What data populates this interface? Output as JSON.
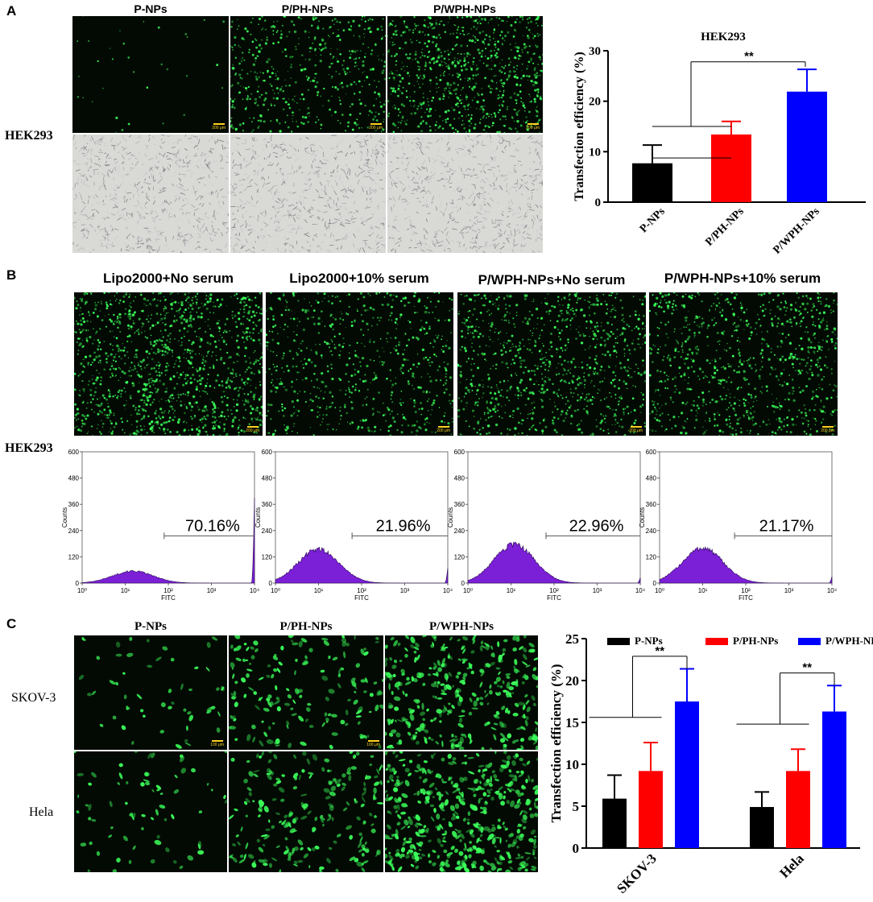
{
  "panels": {
    "A": {
      "letter": "A",
      "columns": [
        "P-NPs",
        "P/PH-NPs",
        "P/WPH-NPs"
      ],
      "row_label": "HEK293",
      "scale_label": "200 μm",
      "densities": [
        0.035,
        0.55,
        0.9
      ]
    },
    "B": {
      "letter": "B",
      "columns": [
        "Lipo2000+No serum",
        "Lipo2000+10% serum",
        "P/WPH-NPs+No serum",
        "P/WPH-NPs+10% serum"
      ],
      "row_label": "HEK293",
      "scale_label": "200 μm",
      "densities": [
        0.95,
        0.5,
        0.7,
        0.65
      ]
    },
    "C": {
      "letter": "C",
      "columns": [
        "P-NPs",
        "P/PH-NPs",
        "P/WPH-NPs"
      ],
      "row_labels": [
        "SKOV-3",
        "Hela"
      ],
      "scale_label": "100 μm",
      "densities": [
        [
          0.12,
          0.35,
          0.75
        ],
        [
          0.15,
          0.45,
          0.95
        ]
      ]
    }
  },
  "colors": {
    "black": "#000000",
    "red": "#ff0000",
    "blue": "#0000ff",
    "purple": "#7b20d6",
    "green": "#3bff5a",
    "scale": "#ffd21f"
  },
  "chart_data": [
    {
      "type": "bar",
      "title": "HEK293",
      "ylabel": "Transfection efficiency (%)",
      "categories": [
        "P-NPs",
        "P/PH-NPs",
        "P/WPH-NPs"
      ],
      "values": [
        7.7,
        13.4,
        21.9
      ],
      "errors": [
        3.6,
        2.6,
        4.4
      ],
      "colors": [
        "#000000",
        "#ff0000",
        "#0000ff"
      ],
      "ylim": [
        0,
        30
      ],
      "yticks": [
        0,
        10,
        20,
        30
      ],
      "ytick_labels": [
        "0",
        "10",
        "20",
        "30"
      ],
      "significance": "**"
    },
    {
      "type": "area",
      "xlabel": "FITC",
      "ylabel": "Counts",
      "xlim": [
        1,
        10000
      ],
      "xscale": "log",
      "x_tick_labels": [
        "10⁰",
        "10¹",
        "10²",
        "10³",
        "10⁴"
      ],
      "ylim": [
        0,
        600
      ],
      "ytick_labels": [
        "0",
        "120",
        "240",
        "360",
        "480",
        "600"
      ],
      "histograms": [
        {
          "label": "70.16%",
          "peak": 15,
          "peak_height": 55,
          "gate_start": 80,
          "end_spike": 390
        },
        {
          "label": "21.96%",
          "peak": 10,
          "peak_height": 155,
          "gate_start": 60,
          "end_spike": 70
        },
        {
          "label": "22.96%",
          "peak": 12,
          "peak_height": 175,
          "gate_start": 65,
          "end_spike": 25
        },
        {
          "label": "21.17%",
          "peak": 10,
          "peak_height": 160,
          "gate_start": 55,
          "end_spike": 30
        }
      ]
    },
    {
      "type": "bar",
      "ylabel": "Transfection efficiency (%)",
      "categories": [
        "SKOV-3",
        "Hela"
      ],
      "series": [
        {
          "name": "P-NPs",
          "values": [
            5.9,
            4.9
          ],
          "errors": [
            2.8,
            1.8
          ],
          "color": "#000000"
        },
        {
          "name": "P/PH-NPs",
          "values": [
            9.2,
            9.2
          ],
          "errors": [
            3.4,
            2.6
          ],
          "color": "#ff0000"
        },
        {
          "name": "P/WPH-NPs",
          "values": [
            17.5,
            16.3
          ],
          "errors": [
            3.9,
            3.1
          ],
          "color": "#0000ff"
        }
      ],
      "ylim": [
        0,
        25
      ],
      "yticks": [
        0,
        5,
        10,
        15,
        20,
        25
      ],
      "ytick_labels": [
        "0",
        "5",
        "10",
        "15",
        "20",
        "25"
      ],
      "legend": "top",
      "significance": [
        "**",
        "**"
      ]
    }
  ]
}
